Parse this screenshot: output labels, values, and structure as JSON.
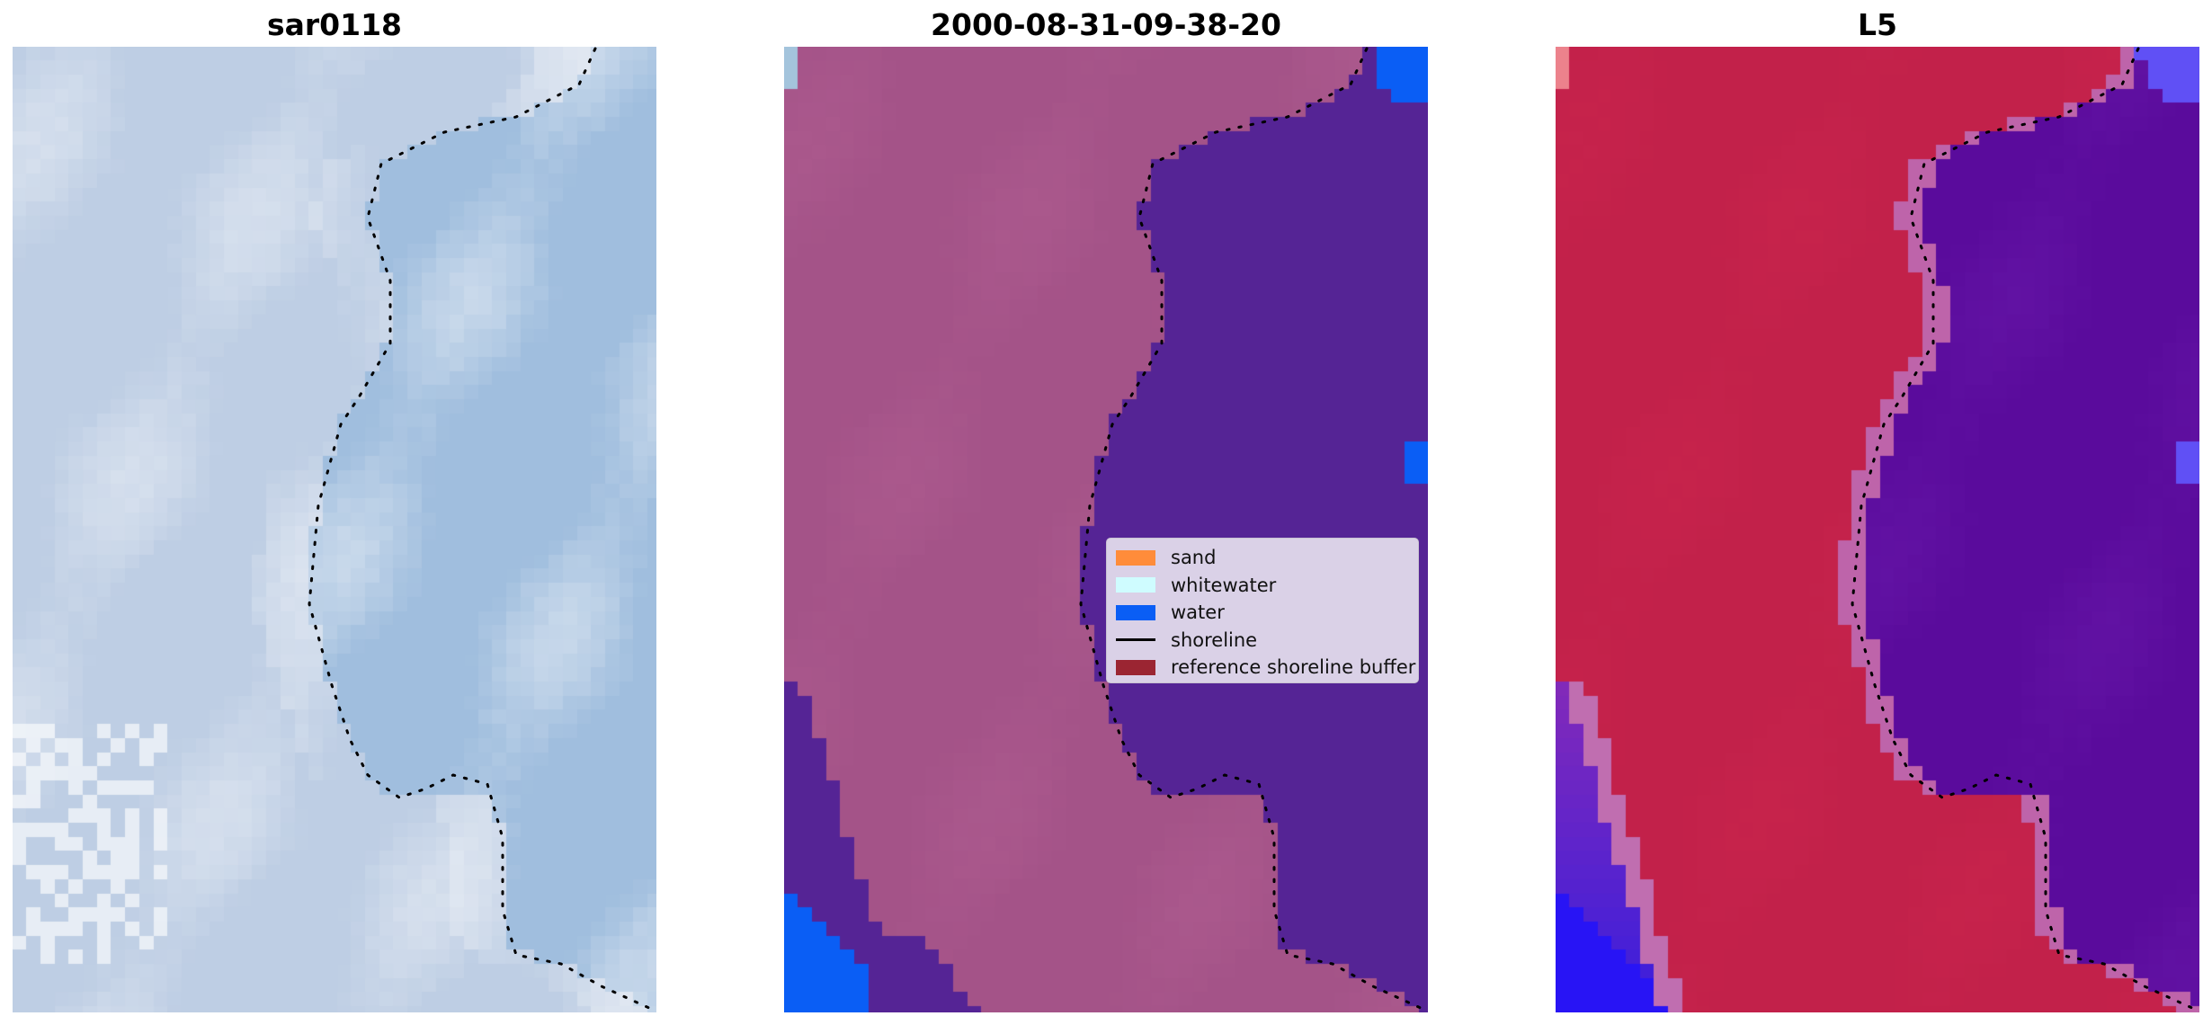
{
  "panels": [
    {
      "title": "sar0118",
      "kind": "true-color"
    },
    {
      "title": "2000-08-31-09-38-20",
      "kind": "classification"
    },
    {
      "title": "L5",
      "kind": "probability"
    }
  ],
  "legend": {
    "placement": "center-right of middle panel",
    "items": [
      {
        "label": "sand",
        "color": "#ff8c3a",
        "type": "patch"
      },
      {
        "label": "whitewater",
        "color": "#cffcff",
        "type": "patch"
      },
      {
        "label": "water",
        "color": "#0a5ef5",
        "type": "patch"
      },
      {
        "label": "shoreline",
        "color": "#000000",
        "type": "line"
      },
      {
        "label": "reference shoreline buffer",
        "color": "#9b2532",
        "type": "patch"
      }
    ]
  },
  "colors": {
    "land_overlay": "#a45388",
    "water_overlay": "#552495",
    "water_pixel": "#0a5ef5",
    "prob_land": "#c2214a",
    "prob_water": "#5a0b9c",
    "shoreline": "#000000"
  }
}
